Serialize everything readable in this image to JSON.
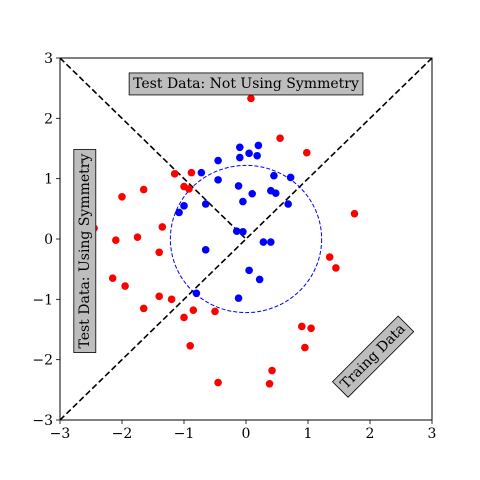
{
  "chart_data": {
    "type": "scatter",
    "xlim": [
      -3,
      3
    ],
    "ylim": [
      -3,
      3
    ],
    "xticks": [
      -3,
      -2,
      -1,
      0,
      1,
      2,
      3
    ],
    "yticks": [
      -3,
      -2,
      -1,
      0,
      1,
      2,
      3
    ],
    "xtick_labels": [
      "−3",
      "−2",
      "−1",
      "0",
      "1",
      "2",
      "3"
    ],
    "ytick_labels": [
      "−3",
      "−2",
      "−1",
      "0",
      "1",
      "2",
      "3"
    ],
    "grid": false,
    "series": [
      {
        "color": "#0000ff",
        "points": [
          [
            -0.1,
            1.52
          ],
          [
            0.05,
            1.42
          ],
          [
            0.2,
            1.55
          ],
          [
            0.18,
            1.38
          ],
          [
            -0.1,
            1.35
          ],
          [
            -0.45,
            1.3
          ],
          [
            -0.72,
            1.1
          ],
          [
            -0.45,
            0.98
          ],
          [
            -0.12,
            0.88
          ],
          [
            0.1,
            0.75
          ],
          [
            0.45,
            1.05
          ],
          [
            0.72,
            1.02
          ],
          [
            0.4,
            0.8
          ],
          [
            0.48,
            0.76
          ],
          [
            -0.05,
            0.62
          ],
          [
            0.68,
            0.58
          ],
          [
            -1.0,
            0.55
          ],
          [
            -0.65,
            0.58
          ],
          [
            -1.08,
            0.44
          ],
          [
            -0.15,
            0.13
          ],
          [
            -0.05,
            0.12
          ],
          [
            0.28,
            -0.05
          ],
          [
            0.4,
            -0.05
          ],
          [
            -0.65,
            -0.18
          ],
          [
            0.05,
            -0.52
          ],
          [
            0.22,
            -0.67
          ],
          [
            -0.8,
            -0.9
          ],
          [
            -0.12,
            -0.98
          ]
        ]
      },
      {
        "color": "#ff0000",
        "points": [
          [
            0.08,
            2.33
          ],
          [
            0.55,
            1.67
          ],
          [
            0.98,
            1.43
          ],
          [
            -1.15,
            1.08
          ],
          [
            -0.88,
            1.1
          ],
          [
            -1.0,
            0.87
          ],
          [
            -0.92,
            0.83
          ],
          [
            -1.65,
            0.82
          ],
          [
            -2.0,
            0.7
          ],
          [
            1.75,
            0.42
          ],
          [
            -2.45,
            0.18
          ],
          [
            -1.35,
            0.2
          ],
          [
            -2.1,
            -0.02
          ],
          [
            -1.75,
            0.03
          ],
          [
            -1.4,
            -0.22
          ],
          [
            1.35,
            -0.3
          ],
          [
            1.45,
            -0.48
          ],
          [
            -2.15,
            -0.65
          ],
          [
            -1.95,
            -0.78
          ],
          [
            -1.4,
            -0.95
          ],
          [
            -1.2,
            -1.0
          ],
          [
            -1.65,
            -1.15
          ],
          [
            -0.85,
            -1.18
          ],
          [
            -0.5,
            -1.2
          ],
          [
            -1.0,
            -1.3
          ],
          [
            0.9,
            -1.45
          ],
          [
            1.05,
            -1.48
          ],
          [
            -0.9,
            -1.77
          ],
          [
            0.95,
            -1.8
          ],
          [
            0.42,
            -2.18
          ],
          [
            -0.45,
            -2.38
          ],
          [
            0.38,
            -2.4
          ]
        ]
      }
    ],
    "lines": [
      {
        "x": [
          -3,
          3
        ],
        "y": [
          -3,
          3
        ],
        "style": "dashed",
        "color": "#000000"
      },
      {
        "x": [
          -3,
          0
        ],
        "y": [
          3,
          0
        ],
        "style": "dashed",
        "color": "#000000"
      }
    ],
    "circle": {
      "center": [
        0,
        0
      ],
      "radius": 1.22,
      "style": "dashed",
      "color": "#0000ff"
    },
    "annotations": [
      {
        "id": "not-using-symmetry",
        "text": "Test Data: Not Using Symmetry",
        "x": 0,
        "y": 2.57,
        "rotation": 0
      },
      {
        "id": "using-symmetry",
        "text": "Test Data: Using Symmetry",
        "x": -2.6,
        "y": -0.2,
        "rotation": -90
      },
      {
        "id": "training-data",
        "text": "Traing Data",
        "x": 2.05,
        "y": -1.95,
        "rotation": -45
      }
    ]
  }
}
